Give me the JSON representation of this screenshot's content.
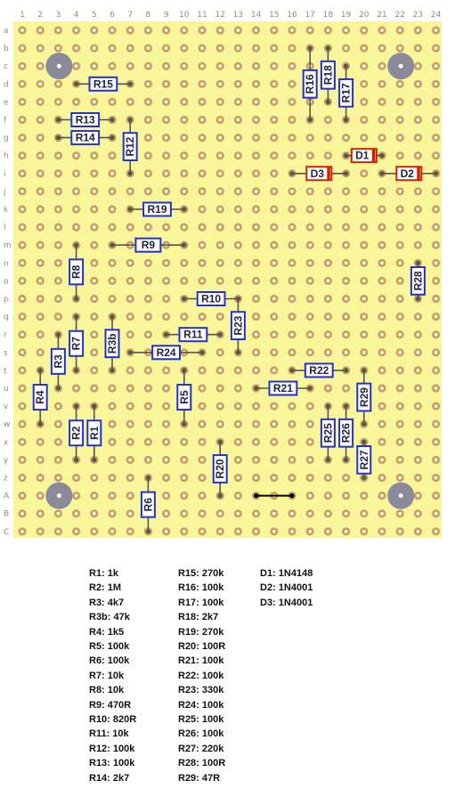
{
  "board": {
    "columns": [
      "1",
      "2",
      "3",
      "4",
      "5",
      "6",
      "7",
      "8",
      "9",
      "10",
      "11",
      "12",
      "13",
      "14",
      "15",
      "16",
      "17",
      "18",
      "19",
      "20",
      "21",
      "22",
      "23",
      "24"
    ],
    "rows": [
      "a",
      "b",
      "c",
      "d",
      "e",
      "f",
      "g",
      "h",
      "i",
      "j",
      "k",
      "l",
      "m",
      "n",
      "o",
      "p",
      "q",
      "r",
      "s",
      "t",
      "u",
      "v",
      "w",
      "x",
      "y",
      "z",
      "A",
      "B",
      "C"
    ],
    "colors": {
      "board": "#f9f59a",
      "pad_ring": "#c8a060",
      "pad_hole": "#ffffff",
      "resistor": "#2233cc",
      "diode": "#cc2200",
      "mount_hole": "#8a8a9a",
      "wire": "#000000"
    }
  },
  "components": {
    "resistors": [
      {
        "id": "R1",
        "ref": "R1",
        "orient": "v",
        "c1": 5,
        "r1": 21,
        "c2": 5,
        "r2": 24
      },
      {
        "id": "R2",
        "ref": "R2",
        "orient": "v",
        "c1": 4,
        "r1": 21,
        "c2": 4,
        "r2": 24
      },
      {
        "id": "R3",
        "ref": "R3",
        "orient": "v",
        "c1": 3,
        "r1": 17,
        "c2": 3,
        "r2": 20
      },
      {
        "id": "R3b",
        "ref": "R3b",
        "orient": "v",
        "c1": 6,
        "r1": 16,
        "c2": 6,
        "r2": 19
      },
      {
        "id": "R4",
        "ref": "R4",
        "orient": "v",
        "c1": 2,
        "r1": 19,
        "c2": 2,
        "r2": 22
      },
      {
        "id": "R5",
        "ref": "R5",
        "orient": "v",
        "c1": 10,
        "r1": 19,
        "c2": 10,
        "r2": 22
      },
      {
        "id": "R6",
        "ref": "R6",
        "orient": "v",
        "c1": 8,
        "r1": 25,
        "c2": 8,
        "r2": 28
      },
      {
        "id": "R7",
        "ref": "R7",
        "orient": "v",
        "c1": 4,
        "r1": 16,
        "c2": 4,
        "r2": 19
      },
      {
        "id": "R8",
        "ref": "R8",
        "orient": "v",
        "c1": 4,
        "r1": 12,
        "c2": 4,
        "r2": 15
      },
      {
        "id": "R9",
        "ref": "R9",
        "orient": "h",
        "c1": 6,
        "r1": 12,
        "c2": 10,
        "r2": 12
      },
      {
        "id": "R10",
        "ref": "R10",
        "orient": "h",
        "c1": 10,
        "r1": 15,
        "c2": 13,
        "r2": 15
      },
      {
        "id": "R11",
        "ref": "R11",
        "orient": "h",
        "c1": 9,
        "r1": 17,
        "c2": 12,
        "r2": 17
      },
      {
        "id": "R12",
        "ref": "R12",
        "orient": "v",
        "c1": 7,
        "r1": 5,
        "c2": 7,
        "r2": 8
      },
      {
        "id": "R13",
        "ref": "R13",
        "orient": "h",
        "c1": 3,
        "r1": 5,
        "c2": 6,
        "r2": 5
      },
      {
        "id": "R14",
        "ref": "R14",
        "orient": "h",
        "c1": 3,
        "r1": 6,
        "c2": 6,
        "r2": 6
      },
      {
        "id": "R15",
        "ref": "R15",
        "orient": "h",
        "c1": 4,
        "r1": 3,
        "c2": 7,
        "r2": 3
      },
      {
        "id": "R16",
        "ref": "R16",
        "orient": "v",
        "c1": 17,
        "r1": 1,
        "c2": 17,
        "r2": 5
      },
      {
        "id": "R17",
        "ref": "R17",
        "orient": "v",
        "c1": 19,
        "r1": 2,
        "c2": 19,
        "r2": 5
      },
      {
        "id": "R18",
        "ref": "R18",
        "orient": "v",
        "c1": 18,
        "r1": 1,
        "c2": 18,
        "r2": 4
      },
      {
        "id": "R19",
        "ref": "R19",
        "orient": "h",
        "c1": 7,
        "r1": 10,
        "c2": 10,
        "r2": 10
      },
      {
        "id": "R20",
        "ref": "R20",
        "orient": "v",
        "c1": 12,
        "r1": 23,
        "c2": 12,
        "r2": 26
      },
      {
        "id": "R21",
        "ref": "R21",
        "orient": "h",
        "c1": 14,
        "r1": 20,
        "c2": 17,
        "r2": 20
      },
      {
        "id": "R22",
        "ref": "R22",
        "orient": "h",
        "c1": 16,
        "r1": 19,
        "c2": 19,
        "r2": 19
      },
      {
        "id": "R23",
        "ref": "R23",
        "orient": "v",
        "c1": 13,
        "r1": 15,
        "c2": 13,
        "r2": 18
      },
      {
        "id": "R24",
        "ref": "R24",
        "orient": "h",
        "c1": 7,
        "r1": 18,
        "c2": 11,
        "r2": 18
      },
      {
        "id": "R25",
        "ref": "R25",
        "orient": "v",
        "c1": 18,
        "r1": 21,
        "c2": 18,
        "r2": 24
      },
      {
        "id": "R26",
        "ref": "R26",
        "orient": "v",
        "c1": 19,
        "r1": 21,
        "c2": 19,
        "r2": 24
      },
      {
        "id": "R27",
        "ref": "R27",
        "orient": "v",
        "c1": 20,
        "r1": 23,
        "c2": 20,
        "r2": 25
      },
      {
        "id": "R28",
        "ref": "R28",
        "orient": "v",
        "c1": 23,
        "r1": 13,
        "c2": 23,
        "r2": 15
      },
      {
        "id": "R29",
        "ref": "R29",
        "orient": "v",
        "c1": 20,
        "r1": 19,
        "c2": 20,
        "r2": 22
      }
    ],
    "diodes": [
      {
        "id": "D1",
        "ref": "D1",
        "c1": 19,
        "r1": 7,
        "c2": 21,
        "r2": 7
      },
      {
        "id": "D2",
        "ref": "D2",
        "c1": 21,
        "r1": 8,
        "c2": 24,
        "r2": 8
      },
      {
        "id": "D3",
        "ref": "D3",
        "c1": 16,
        "r1": 8,
        "c2": 19,
        "r2": 8
      }
    ],
    "wires": [
      {
        "id": "W1",
        "c1": 14,
        "r1": 26,
        "c2": 16,
        "r2": 26
      }
    ],
    "mount_holes": [
      {
        "c": 3,
        "r": 2
      },
      {
        "c": 22,
        "r": 2
      },
      {
        "c": 3,
        "r": 26
      },
      {
        "c": 22,
        "r": 26
      }
    ]
  },
  "legend": {
    "col1": [
      "R1: 1k",
      "R2: 1M",
      "R3: 4k7",
      "R3b: 47k",
      "R4: 1k5",
      "R5: 100k",
      "R6: 100k",
      "R7: 10k",
      "R8: 10k",
      "R9: 470R",
      "R10: 820R",
      "R11: 10k",
      "R12: 100k",
      "R13: 100k",
      "R14: 2k7"
    ],
    "col2": [
      "R15: 270k",
      "R16: 100k",
      "R17: 100k",
      "R18: 2k7",
      "R19: 270k",
      "R20: 100R",
      "R21: 100k",
      "R22: 100k",
      "R23: 330k",
      "R24: 100k",
      "R25: 100k",
      "R26: 100k",
      "R27: 220k",
      "R28: 100R",
      "R29: 47R"
    ],
    "col3": [
      "D1: 1N4148",
      "D2: 1N4001",
      "D3: 1N4001"
    ]
  }
}
